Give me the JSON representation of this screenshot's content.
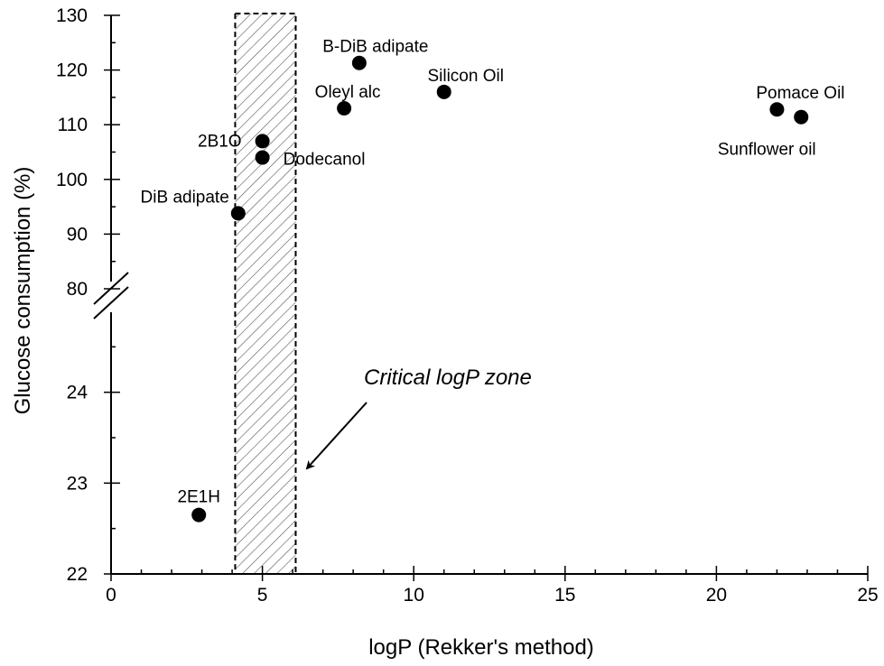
{
  "chart_data": {
    "type": "scatter",
    "xlabel": "logP (Rekker's method)",
    "ylabel": "Glucose consumption (%)",
    "xlim": [
      0,
      25
    ],
    "x_ticks": [
      "0",
      "5",
      "10",
      "15",
      "20",
      "25"
    ],
    "y_axis": {
      "broken": true,
      "lower_segment": {
        "range": [
          22,
          25
        ],
        "ticks": [
          "22",
          "23",
          "24"
        ]
      },
      "upper_segment": {
        "range": [
          80,
          130
        ],
        "ticks": [
          "80",
          "90",
          "100",
          "110",
          "120",
          "130"
        ]
      }
    },
    "grid": false,
    "points": [
      {
        "label": "2E1H",
        "x": 2.9,
        "y": 22.65
      },
      {
        "label": "DiB adipate",
        "x": 4.2,
        "y": 93.8
      },
      {
        "label": "2B1O",
        "x": 5.0,
        "y": 107.0
      },
      {
        "label": "Dodecanol",
        "x": 5.0,
        "y": 104.0
      },
      {
        "label": "Oleyl alc",
        "x": 7.7,
        "y": 113.0
      },
      {
        "label": "B-DiB adipate",
        "x": 8.2,
        "y": 121.3
      },
      {
        "label": "Silicon Oil",
        "x": 11.0,
        "y": 116.0
      },
      {
        "label": "Pomace Oil",
        "x": 22.0,
        "y": 112.8
      },
      {
        "label": "Sunflower oil",
        "x": 22.8,
        "y": 111.4
      }
    ],
    "shaded_region": {
      "label": "Critical logP zone",
      "x_range": [
        4.1,
        6.1
      ]
    }
  }
}
